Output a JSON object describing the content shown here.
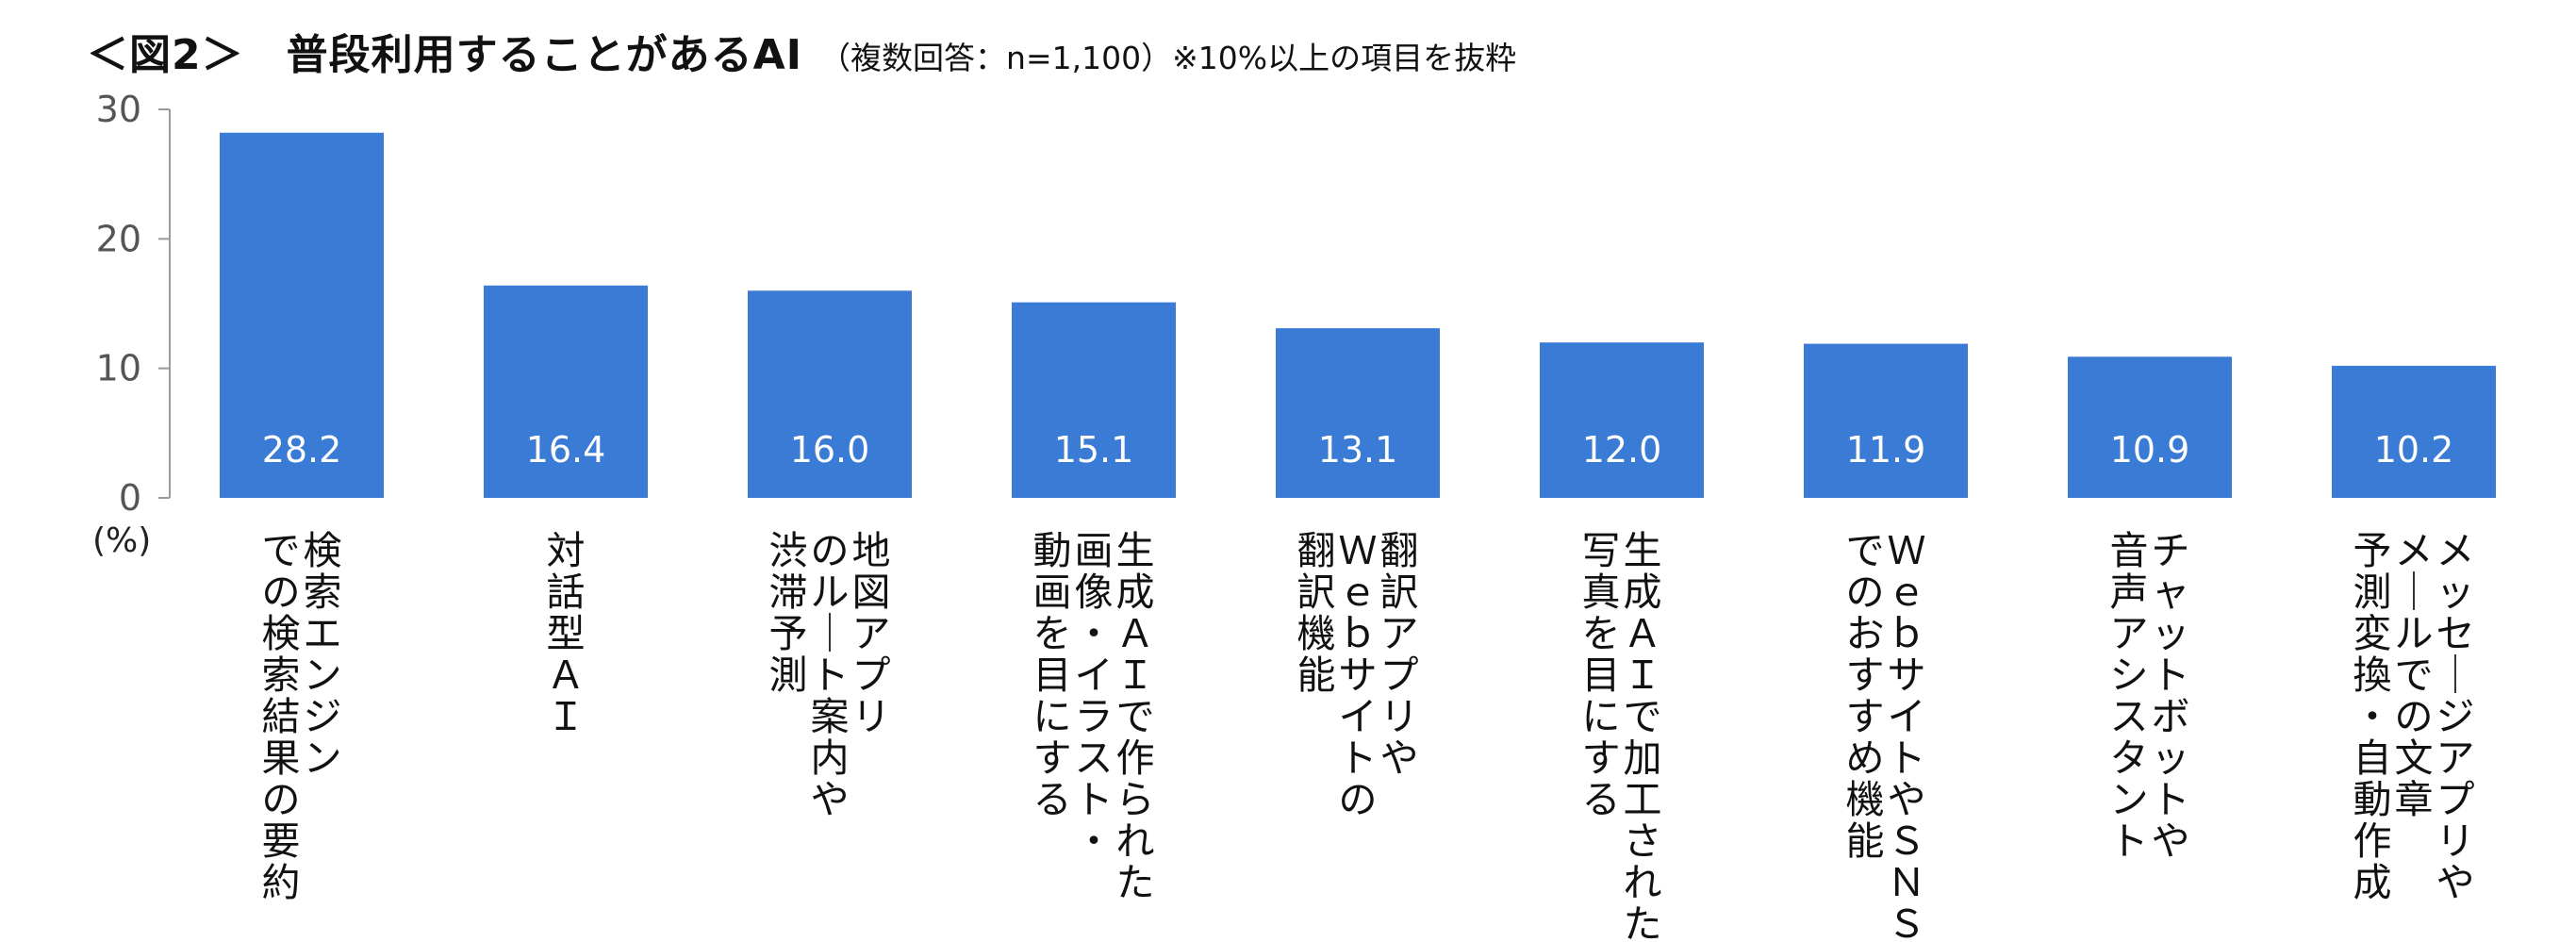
{
  "title": "＜図2＞　普段利用することがあるAI",
  "subtitle": "（複数回答：n=1,100）※10%以上の項目を抜粋",
  "unit": "(%)",
  "chart_data": {
    "type": "bar",
    "title": "＜図2＞　普段利用することがあるAI",
    "subtitle": "（複数回答：n=1,100）※10%以上の項目を抜粋",
    "ylabel": "(%)",
    "ylim": [
      0,
      30
    ],
    "yticks": [
      0,
      10,
      20,
      30
    ],
    "grid": false,
    "bar_color": "#3A7BD5",
    "categories": [
      [
        "検索エンジン",
        "での検索結果の要約"
      ],
      [
        "対話型ＡＩ"
      ],
      [
        "地図アプリ",
        "のルート案内や",
        "渋滞予測"
      ],
      [
        "生成ＡＩで作られた",
        "画像・イラスト・",
        "動画を目にする"
      ],
      [
        "翻訳アプリや",
        "Ｗｅｂサイトの",
        "翻訳機能"
      ],
      [
        "生成ＡＩで加工された",
        "写真を目にする"
      ],
      [
        "ＷｅｂサイトやＳＮＳ",
        "でのおすすめ機能"
      ],
      [
        "チャットボットや",
        "音声アシスタント"
      ],
      [
        "メッセージアプリや",
        "メールでの文章",
        "予測変換・自動作成"
      ]
    ],
    "values": [
      28.2,
      16.4,
      16.0,
      15.1,
      13.1,
      12.0,
      11.9,
      10.9,
      10.2
    ],
    "value_labels": [
      "28.2",
      "16.4",
      "16.0",
      "15.1",
      "13.1",
      "12.0",
      "11.9",
      "10.9",
      "10.2"
    ]
  }
}
